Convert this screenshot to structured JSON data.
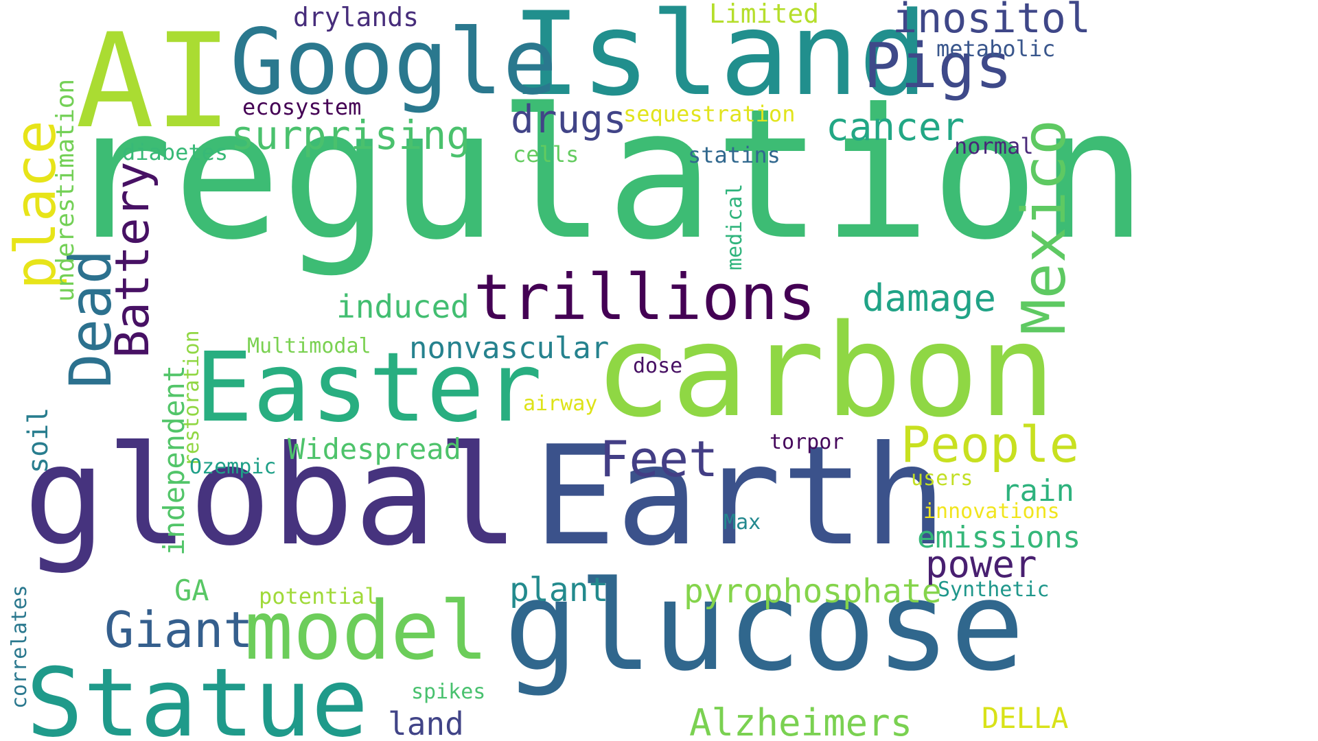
{
  "words": [
    {
      "key": "regulation",
      "text": "regulation",
      "color": "#3dbc74",
      "orientation": "horizontal"
    },
    {
      "key": "global",
      "text": "global",
      "color": "#46337e",
      "orientation": "horizontal"
    },
    {
      "key": "earth",
      "text": "Earth",
      "color": "#3b528b",
      "orientation": "horizontal"
    },
    {
      "key": "glucose",
      "text": "glucose",
      "color": "#30678d",
      "orientation": "horizontal"
    },
    {
      "key": "carbon",
      "text": "carbon",
      "color": "#8fd744",
      "orientation": "horizontal"
    },
    {
      "key": "island",
      "text": "Island",
      "color": "#218f8d",
      "orientation": "horizontal"
    },
    {
      "key": "ai",
      "text": "AI",
      "color": "#aadc32",
      "orientation": "horizontal"
    },
    {
      "key": "google",
      "text": "Google",
      "color": "#2a788e",
      "orientation": "horizontal"
    },
    {
      "key": "easter",
      "text": "Easter",
      "color": "#28ae80",
      "orientation": "horizontal"
    },
    {
      "key": "statue",
      "text": "Statue",
      "color": "#1f9a8a",
      "orientation": "horizontal"
    },
    {
      "key": "model",
      "text": "model",
      "color": "#6ccd5a",
      "orientation": "horizontal"
    },
    {
      "key": "trillions",
      "text": "trillions",
      "color": "#440154",
      "orientation": "horizontal"
    },
    {
      "key": "pigs",
      "text": "Pigs",
      "color": "#3e4989",
      "orientation": "horizontal"
    },
    {
      "key": "mexico",
      "text": "Mexico",
      "color": "#5ec962",
      "orientation": "vertical"
    },
    {
      "key": "dead",
      "text": "Dead",
      "color": "#2c718e",
      "orientation": "vertical"
    },
    {
      "key": "place",
      "text": "place",
      "color": "#e7e419",
      "orientation": "vertical"
    },
    {
      "key": "battery",
      "text": "Battery",
      "color": "#471164",
      "orientation": "vertical"
    },
    {
      "key": "giant",
      "text": "Giant",
      "color": "#355f8d",
      "orientation": "horizontal"
    },
    {
      "key": "feet",
      "text": "Feet",
      "color": "#433e85",
      "orientation": "horizontal"
    },
    {
      "key": "people",
      "text": "People",
      "color": "#c8e020",
      "orientation": "horizontal"
    },
    {
      "key": "inositol",
      "text": "inositol",
      "color": "#3f4788",
      "orientation": "horizontal"
    },
    {
      "key": "surprising",
      "text": "surprising",
      "color": "#4ac16d",
      "orientation": "horizontal"
    },
    {
      "key": "cancer",
      "text": "cancer",
      "color": "#22a785",
      "orientation": "horizontal"
    },
    {
      "key": "drugs",
      "text": "drugs",
      "color": "#414487",
      "orientation": "horizontal"
    },
    {
      "key": "damage",
      "text": "damage",
      "color": "#20a386",
      "orientation": "horizontal"
    },
    {
      "key": "alzheimers",
      "text": "Alzheimers",
      "color": "#7ad151",
      "orientation": "horizontal"
    },
    {
      "key": "pyrophosphate",
      "text": "pyrophosphate",
      "color": "#84d44b",
      "orientation": "horizontal"
    },
    {
      "key": "power",
      "text": "power",
      "color": "#481f70",
      "orientation": "horizontal"
    },
    {
      "key": "emissions",
      "text": "emissions",
      "color": "#35b779",
      "orientation": "horizontal"
    },
    {
      "key": "plant",
      "text": "plant",
      "color": "#238a8d",
      "orientation": "horizontal"
    },
    {
      "key": "land",
      "text": "land",
      "color": "#414487",
      "orientation": "horizontal"
    },
    {
      "key": "induced",
      "text": "induced",
      "color": "#42be71",
      "orientation": "horizontal"
    },
    {
      "key": "nonvascular",
      "text": "nonvascular",
      "color": "#26828e",
      "orientation": "horizontal"
    },
    {
      "key": "widespread",
      "text": "Widespread",
      "color": "#4ec36b",
      "orientation": "horizontal"
    },
    {
      "key": "independent",
      "text": "independent",
      "color": "#52c569",
      "orientation": "vertical"
    },
    {
      "key": "underestimation",
      "text": "underestimation",
      "color": "#73d056",
      "orientation": "vertical"
    },
    {
      "key": "soil",
      "text": "soil",
      "color": "#287d8e",
      "orientation": "vertical"
    },
    {
      "key": "rain",
      "text": "rain",
      "color": "#2db27d",
      "orientation": "horizontal"
    },
    {
      "key": "della",
      "text": "DELLA",
      "color": "#d8e219",
      "orientation": "horizontal"
    },
    {
      "key": "drylands",
      "text": "drylands",
      "color": "#472d7b",
      "orientation": "horizontal"
    },
    {
      "key": "limited",
      "text": "Limited",
      "color": "#b5de2b",
      "orientation": "horizontal"
    },
    {
      "key": "metabolic",
      "text": "metabolic",
      "color": "#39568c",
      "orientation": "horizontal"
    },
    {
      "key": "ecosystem",
      "text": "ecosystem",
      "color": "#440154",
      "orientation": "horizontal"
    },
    {
      "key": "sequestration",
      "text": "sequestration",
      "color": "#e1e41d",
      "orientation": "horizontal"
    },
    {
      "key": "diabetes",
      "text": "diabetes",
      "color": "#38b977",
      "orientation": "horizontal"
    },
    {
      "key": "cells",
      "text": "cells",
      "color": "#63cb5f",
      "orientation": "horizontal"
    },
    {
      "key": "statins",
      "text": "statins",
      "color": "#31688e",
      "orientation": "horizontal"
    },
    {
      "key": "normal",
      "text": "normal",
      "color": "#482878",
      "orientation": "horizontal"
    },
    {
      "key": "medical",
      "text": "medical",
      "color": "#2fb47c",
      "orientation": "vertical"
    },
    {
      "key": "multimodal",
      "text": "Multimodal",
      "color": "#7ad151",
      "orientation": "horizontal"
    },
    {
      "key": "dose",
      "text": "dose",
      "color": "#471063",
      "orientation": "horizontal"
    },
    {
      "key": "airway",
      "text": "airway",
      "color": "#dde318",
      "orientation": "horizontal"
    },
    {
      "key": "restoration",
      "text": "restoration",
      "color": "#90d743",
      "orientation": "vertical"
    },
    {
      "key": "torpor",
      "text": "torpor",
      "color": "#46085c",
      "orientation": "horizontal"
    },
    {
      "key": "ozempic",
      "text": "Ozempic",
      "color": "#1fa088",
      "orientation": "horizontal"
    },
    {
      "key": "users",
      "text": "users",
      "color": "#c2df23",
      "orientation": "horizontal"
    },
    {
      "key": "innovations",
      "text": "innovations",
      "color": "#f1e51d",
      "orientation": "horizontal"
    },
    {
      "key": "max",
      "text": "Max",
      "color": "#23888e",
      "orientation": "horizontal"
    },
    {
      "key": "ga",
      "text": "GA",
      "color": "#58c765",
      "orientation": "horizontal"
    },
    {
      "key": "potential",
      "text": "potential",
      "color": "#a0da39",
      "orientation": "horizontal"
    },
    {
      "key": "synthetic",
      "text": "Synthetic",
      "color": "#1f978b",
      "orientation": "horizontal"
    },
    {
      "key": "correlates",
      "text": "correlates",
      "color": "#2a788e",
      "orientation": "vertical"
    },
    {
      "key": "spikes",
      "text": "spikes",
      "color": "#48c16e",
      "orientation": "horizontal"
    }
  ]
}
